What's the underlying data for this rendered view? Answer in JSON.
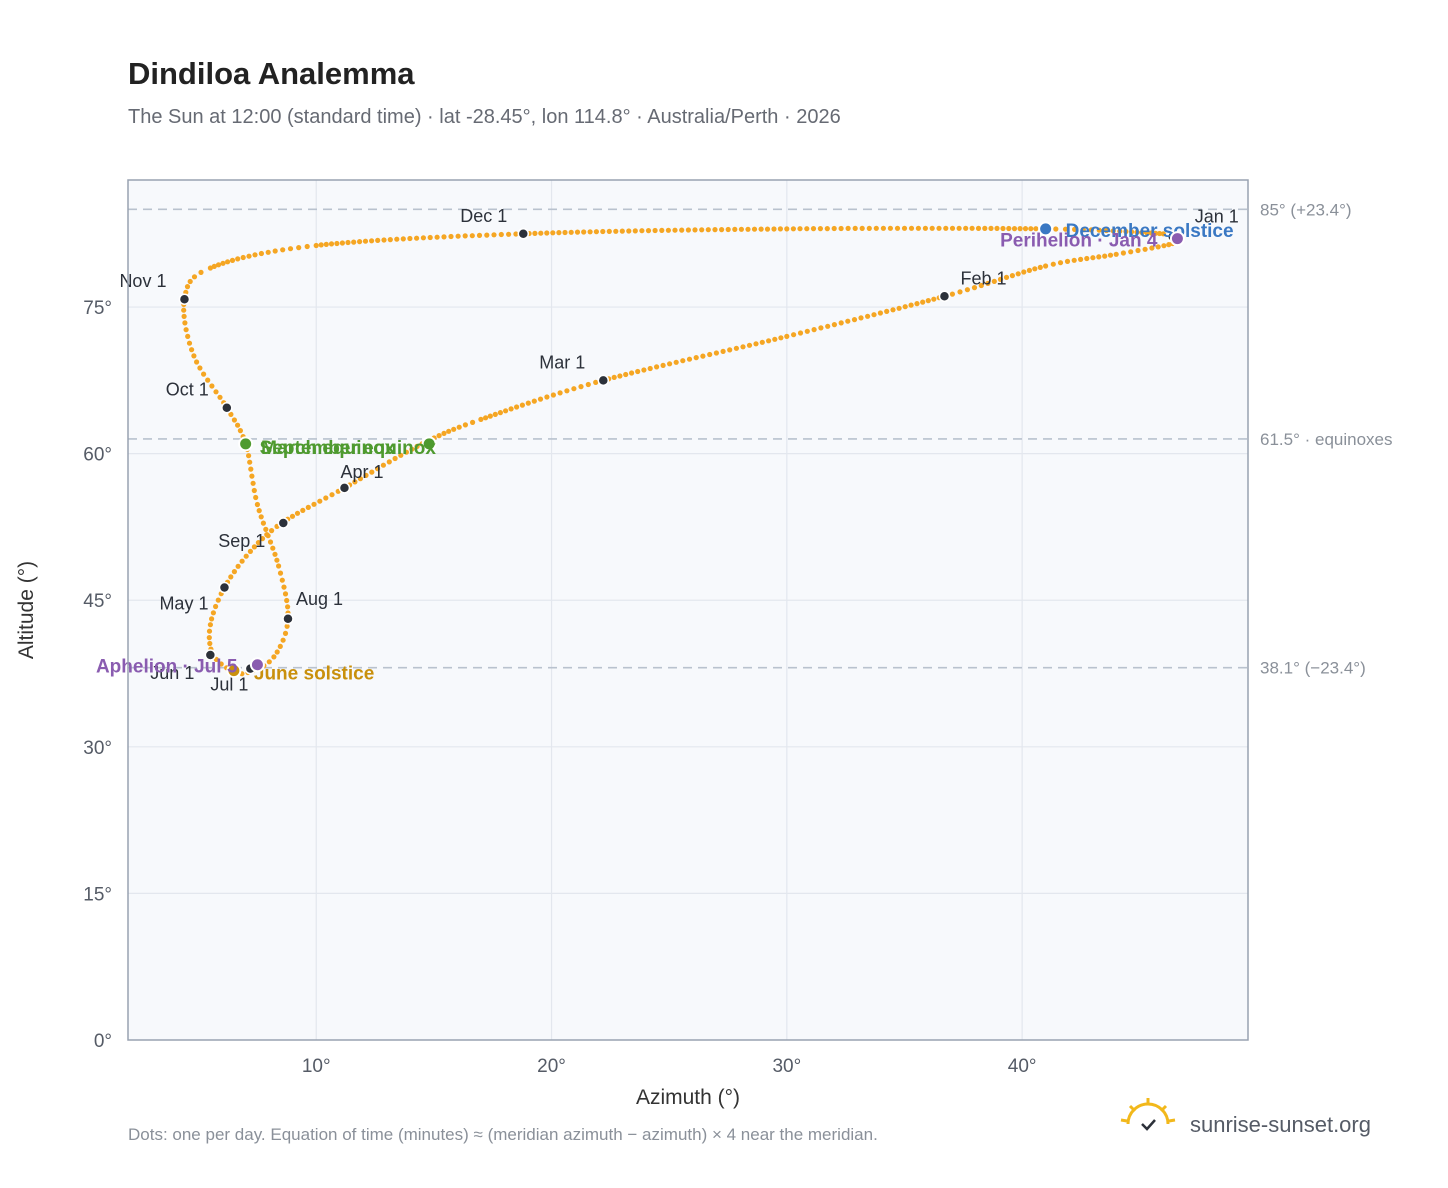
{
  "header": {
    "title": "Dindiloa Analemma",
    "subtitle": "The Sun at 12:00 (standard time) · lat -28.45°, lon 114.8° · Australia/Perth · 2026"
  },
  "footer": {
    "note": "Dots: one per day. Equation of time (minutes) ≈ (meridian azimuth − azimuth) × 4 near the meridian.",
    "brand": "sunrise-sunset.org",
    "logo_icon": "sun-logo-icon"
  },
  "colors": {
    "curve": "#f5a623",
    "month_marker": "#2c313a",
    "equinox": "#4e9a2f",
    "june_solstice": "#c9900c",
    "december_solstice": "#3a78c3",
    "apsis": "#8a5cb0",
    "plot_background": "#f7f9fc",
    "grid": "#e3e7ee",
    "reference_line": "#b9c2ce"
  },
  "chart_data": {
    "type": "scatter",
    "title": "Dindiloa Analemma",
    "xlabel": "Azimuth (°)",
    "ylabel": "Altitude (°)",
    "xlim": [
      2,
      49.6
    ],
    "ylim": [
      0,
      88
    ],
    "x_ticks": [
      10,
      20,
      30,
      40
    ],
    "x_tick_labels": [
      "10°",
      "20°",
      "30°",
      "40°"
    ],
    "y_ticks": [
      0,
      15,
      30,
      45,
      60,
      75
    ],
    "y_tick_labels": [
      "0°",
      "15°",
      "30°",
      "45°",
      "60°",
      "75°"
    ],
    "grid": true,
    "legend": "none",
    "reference_lines": [
      {
        "y": 85,
        "label": "85° (+23.4°)"
      },
      {
        "y": 61.5,
        "label": "61.5° · equinoxes"
      },
      {
        "y": 38.1,
        "label": "38.1° (−23.4°)"
      }
    ],
    "series": [
      {
        "kind": "daily-dots",
        "points_azimuth_altitude": [
          [
            46.6,
            82.3
          ],
          [
            46.4,
            81.5
          ],
          [
            44.0,
            80.4
          ],
          [
            41.0,
            79.2
          ],
          [
            36.7,
            76.1
          ],
          [
            30.0,
            72.0
          ],
          [
            22.2,
            67.5
          ],
          [
            17.0,
            63.5
          ],
          [
            14.5,
            61.0
          ],
          [
            11.2,
            56.5
          ],
          [
            8.6,
            53.0
          ],
          [
            7.2,
            50.0
          ],
          [
            6.1,
            46.3
          ],
          [
            5.5,
            42.5
          ],
          [
            5.6,
            39.5
          ],
          [
            6.4,
            37.8
          ],
          [
            7.1,
            37.6
          ],
          [
            8.2,
            39.2
          ],
          [
            8.8,
            43.1
          ],
          [
            8.4,
            48.5
          ],
          [
            7.5,
            54.8
          ],
          [
            7.0,
            61.0
          ],
          [
            6.2,
            64.7
          ],
          [
            4.8,
            70.0
          ],
          [
            4.4,
            75.8
          ],
          [
            5.5,
            79.0
          ],
          [
            10.0,
            81.3
          ],
          [
            18.8,
            82.5
          ],
          [
            30.0,
            83.0
          ],
          [
            41.0,
            83.0
          ],
          [
            46.0,
            82.5
          ],
          [
            46.6,
            82.3
          ]
        ]
      }
    ],
    "month_markers": [
      {
        "label": "Jan 1",
        "azimuth": 46.4,
        "altitude": 82.2
      },
      {
        "label": "Feb 1",
        "azimuth": 36.7,
        "altitude": 76.1
      },
      {
        "label": "Mar 1",
        "azimuth": 22.2,
        "altitude": 67.5
      },
      {
        "label": "Apr 1",
        "azimuth": 11.2,
        "altitude": 56.5
      },
      {
        "label": "May 1",
        "azimuth": 6.1,
        "altitude": 46.3
      },
      {
        "label": "Jun 1",
        "azimuth": 5.5,
        "altitude": 39.4
      },
      {
        "label": "Jul 1",
        "azimuth": 7.2,
        "altitude": 38.0
      },
      {
        "label": "Aug 1",
        "azimuth": 8.8,
        "altitude": 43.1
      },
      {
        "label": "Sep 1",
        "azimuth": 8.6,
        "altitude": 52.9
      },
      {
        "label": "Oct 1",
        "azimuth": 6.2,
        "altitude": 64.7
      },
      {
        "label": "Nov 1",
        "azimuth": 4.4,
        "altitude": 75.8
      },
      {
        "label": "Dec 1",
        "azimuth": 18.8,
        "altitude": 82.5
      }
    ],
    "events": [
      {
        "label": "December solstice",
        "azimuth": 41.0,
        "altitude": 83.0,
        "color_key": "december_solstice"
      },
      {
        "label": "Perihelion · Jan 4",
        "azimuth": 46.6,
        "altitude": 82.0,
        "color_key": "apsis"
      },
      {
        "label": "March equinox",
        "azimuth": 14.8,
        "altitude": 61.0,
        "color_key": "equinox"
      },
      {
        "label": "September equinox",
        "azimuth": 7.0,
        "altitude": 61.0,
        "color_key": "equinox"
      },
      {
        "label": "June solstice",
        "azimuth": 6.5,
        "altitude": 37.8,
        "color_key": "june_solstice"
      },
      {
        "label": "Aphelion · Jul 5",
        "azimuth": 7.5,
        "altitude": 38.4,
        "color_key": "apsis"
      }
    ]
  }
}
